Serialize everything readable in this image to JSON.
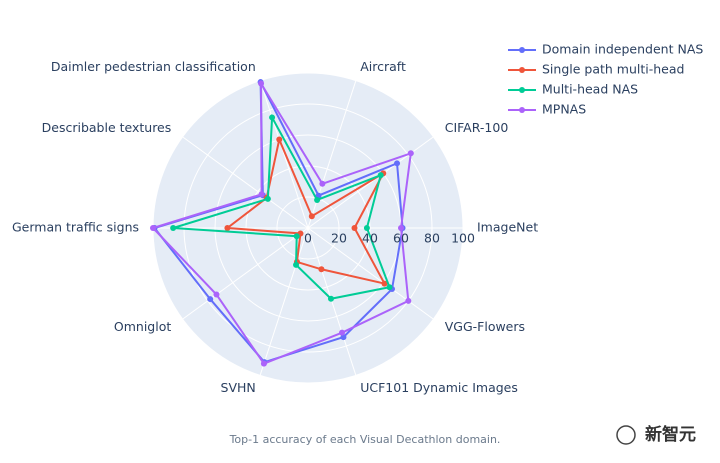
{
  "chart_data": {
    "type": "radar",
    "categories": [
      "ImageNet",
      "CIFAR-100",
      "Aircraft",
      "Daimler pedestrian classification",
      "Describable textures",
      "German traffic signs",
      "Omniglot",
      "SVHN",
      "UCF101 Dynamic Images",
      "VGG-Flowers"
    ],
    "series": [
      {
        "name": "Domain independent NAS",
        "color": "#636efa",
        "values": [
          61,
          71,
          22,
          99,
          36,
          99,
          78,
          91,
          74,
          67
        ]
      },
      {
        "name": "Single path multi-head",
        "color": "#ef553b",
        "values": [
          30,
          60,
          8,
          60,
          33,
          52,
          6,
          23,
          28,
          61
        ]
      },
      {
        "name": "Multi-head NAS",
        "color": "#00cc96",
        "values": [
          38,
          58,
          19,
          75,
          32,
          87,
          9,
          25,
          48,
          65
        ]
      },
      {
        "name": "MPNAS",
        "color": "#ab63fa",
        "values": [
          60,
          82,
          30,
          98,
          37,
          100,
          73,
          92,
          71,
          80
        ]
      }
    ],
    "rlim": [
      0,
      100
    ],
    "rticks": [
      0,
      20,
      40,
      60,
      80,
      100
    ],
    "grid": true,
    "legend": "top-right"
  },
  "caption": "Top-1 accuracy of each Visual Decathlon domain.",
  "watermark": "新智元"
}
